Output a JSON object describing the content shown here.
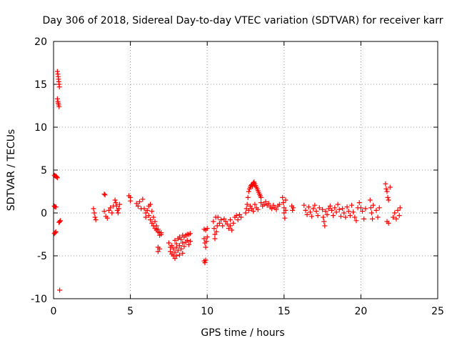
{
  "chart_data": {
    "type": "scatter",
    "title": "Day 306 of 2018, Sidereal Day-to-day VTEC variation (SDTVAR) for receiver karr",
    "xlabel": "GPS time / hours",
    "ylabel": "SDTVAR / TECUs",
    "xlim": [
      0,
      25
    ],
    "ylim": [
      -10,
      20
    ],
    "xticks": [
      0,
      5,
      10,
      15,
      20,
      25
    ],
    "yticks": [
      -10,
      -5,
      0,
      5,
      10,
      15,
      20
    ],
    "xtick_labels": [
      "0",
      "5",
      "10",
      "15",
      "20",
      "25"
    ],
    "ytick_labels": [
      "-10",
      "-5",
      "0",
      "5",
      "10",
      "15",
      "20"
    ],
    "grid": true,
    "marker": "+",
    "color": "#ff0000",
    "series": [
      {
        "name": "SDTVAR",
        "points": [
          [
            0.25,
            16.5
          ],
          [
            0.28,
            16.2
          ],
          [
            0.3,
            15.9
          ],
          [
            0.32,
            15.6
          ],
          [
            0.34,
            15.3
          ],
          [
            0.36,
            15.0
          ],
          [
            0.38,
            14.7
          ],
          [
            0.25,
            13.3
          ],
          [
            0.28,
            13.0
          ],
          [
            0.3,
            12.8
          ],
          [
            0.33,
            12.6
          ],
          [
            0.36,
            12.4
          ],
          [
            0.05,
            4.4
          ],
          [
            0.1,
            4.3
          ],
          [
            0.15,
            4.3
          ],
          [
            0.2,
            4.2
          ],
          [
            0.25,
            4.1
          ],
          [
            0.05,
            0.8
          ],
          [
            0.1,
            0.7
          ],
          [
            0.15,
            0.7
          ],
          [
            0.05,
            -2.4
          ],
          [
            0.1,
            -2.3
          ],
          [
            0.15,
            -2.2
          ],
          [
            0.35,
            -1.1
          ],
          [
            0.4,
            -1.0
          ],
          [
            0.45,
            -0.9
          ],
          [
            0.4,
            -9.0
          ],
          [
            2.6,
            0.5
          ],
          [
            2.65,
            0.0
          ],
          [
            2.7,
            -0.5
          ],
          [
            2.75,
            -0.8
          ],
          [
            3.3,
            2.2
          ],
          [
            3.35,
            2.1
          ],
          [
            3.3,
            0.2
          ],
          [
            3.4,
            -0.4
          ],
          [
            3.5,
            -0.6
          ],
          [
            3.6,
            0.3
          ],
          [
            3.7,
            0.6
          ],
          [
            3.8,
            0.0
          ],
          [
            3.9,
            0.8
          ],
          [
            4.0,
            1.5
          ],
          [
            4.05,
            1.2
          ],
          [
            4.1,
            0.8
          ],
          [
            4.15,
            0.3
          ],
          [
            4.2,
            0.0
          ],
          [
            4.25,
            0.5
          ],
          [
            4.3,
            1.0
          ],
          [
            4.9,
            2.0
          ],
          [
            5.0,
            1.8
          ],
          [
            5.0,
            1.4
          ],
          [
            5.4,
            1.1
          ],
          [
            5.5,
            0.8
          ],
          [
            5.6,
            1.3
          ],
          [
            5.7,
            0.5
          ],
          [
            5.8,
            1.6
          ],
          [
            5.9,
            0.5
          ],
          [
            6.0,
            0.0
          ],
          [
            6.0,
            -0.5
          ],
          [
            6.1,
            0.3
          ],
          [
            6.2,
            -0.3
          ],
          [
            6.2,
            0.8
          ],
          [
            6.3,
            -0.8
          ],
          [
            6.3,
            1.0
          ],
          [
            6.4,
            -1.2
          ],
          [
            6.4,
            0.2
          ],
          [
            6.5,
            -1.5
          ],
          [
            6.5,
            -0.5
          ],
          [
            6.6,
            -1.8
          ],
          [
            6.6,
            -1.0
          ],
          [
            6.7,
            -2.0
          ],
          [
            6.7,
            -1.5
          ],
          [
            6.8,
            -2.2
          ],
          [
            6.8,
            -1.9
          ],
          [
            6.9,
            -2.3
          ],
          [
            6.9,
            -2.6
          ],
          [
            7.0,
            -2.3
          ],
          [
            7.0,
            -2.5
          ],
          [
            6.8,
            -4.0
          ],
          [
            6.8,
            -4.5
          ],
          [
            6.9,
            -4.2
          ],
          [
            7.5,
            -3.5
          ],
          [
            7.6,
            -4.0
          ],
          [
            7.6,
            -4.5
          ],
          [
            7.7,
            -3.8
          ],
          [
            7.7,
            -4.8
          ],
          [
            7.8,
            -4.2
          ],
          [
            7.8,
            -5.0
          ],
          [
            7.9,
            -3.2
          ],
          [
            7.9,
            -4.6
          ],
          [
            7.9,
            -5.3
          ],
          [
            8.0,
            -3.6
          ],
          [
            8.0,
            -4.0
          ],
          [
            8.0,
            -5.0
          ],
          [
            8.1,
            -3.0
          ],
          [
            8.1,
            -4.4
          ],
          [
            8.2,
            -3.8
          ],
          [
            8.2,
            -4.9
          ],
          [
            8.3,
            -3.1
          ],
          [
            8.3,
            -4.2
          ],
          [
            8.4,
            -3.5
          ],
          [
            8.4,
            -4.7
          ],
          [
            8.5,
            -2.8
          ],
          [
            8.5,
            -3.9
          ],
          [
            8.6,
            -2.6
          ],
          [
            8.6,
            -3.4
          ],
          [
            8.7,
            -2.5
          ],
          [
            8.7,
            -3.2
          ],
          [
            8.8,
            -2.5
          ],
          [
            8.8,
            -3.7
          ],
          [
            8.9,
            -2.4
          ],
          [
            8.9,
            -3.3
          ],
          [
            8.2,
            -2.8
          ],
          [
            8.4,
            -2.6
          ],
          [
            9.8,
            -1.9
          ],
          [
            9.9,
            -2.0
          ],
          [
            10.0,
            -1.8
          ],
          [
            9.8,
            -3.0
          ],
          [
            9.85,
            -3.5
          ],
          [
            9.9,
            -4.0
          ],
          [
            9.95,
            -3.3
          ],
          [
            10.0,
            -2.8
          ],
          [
            9.8,
            -5.6
          ],
          [
            9.85,
            -5.8
          ],
          [
            9.9,
            -5.5
          ],
          [
            10.4,
            -1.0
          ],
          [
            10.45,
            -1.8
          ],
          [
            10.5,
            -2.5
          ],
          [
            10.5,
            -3.0
          ],
          [
            10.55,
            -0.5
          ],
          [
            10.6,
            -2.2
          ],
          [
            10.65,
            -1.5
          ],
          [
            10.7,
            -0.5
          ],
          [
            10.8,
            -1.2
          ],
          [
            10.9,
            -0.8
          ],
          [
            11.0,
            -1.5
          ],
          [
            11.1,
            -0.7
          ],
          [
            11.2,
            -1.0
          ],
          [
            11.3,
            -1.3
          ],
          [
            11.4,
            -1.8
          ],
          [
            11.5,
            -0.8
          ],
          [
            11.5,
            -1.5
          ],
          [
            11.6,
            -2.0
          ],
          [
            11.7,
            -1.2
          ],
          [
            11.8,
            -0.5
          ],
          [
            11.9,
            -0.3
          ],
          [
            12.0,
            -0.8
          ],
          [
            12.1,
            -0.2
          ],
          [
            12.2,
            -0.5
          ],
          [
            12.5,
            0.0
          ],
          [
            12.55,
            0.5
          ],
          [
            12.6,
            1.0
          ],
          [
            12.65,
            1.8
          ],
          [
            12.7,
            2.5
          ],
          [
            12.75,
            2.8
          ],
          [
            12.8,
            3.0
          ],
          [
            12.85,
            3.2
          ],
          [
            12.9,
            3.3
          ],
          [
            12.95,
            3.1
          ],
          [
            13.0,
            3.5
          ],
          [
            13.05,
            3.6
          ],
          [
            13.1,
            3.4
          ],
          [
            13.15,
            3.2
          ],
          [
            13.2,
            3.0
          ],
          [
            13.25,
            2.8
          ],
          [
            13.3,
            2.6
          ],
          [
            13.35,
            2.4
          ],
          [
            13.4,
            2.2
          ],
          [
            13.45,
            2.0
          ],
          [
            13.5,
            1.8
          ],
          [
            12.7,
            0.3
          ],
          [
            12.8,
            0.8
          ],
          [
            12.9,
            0.5
          ],
          [
            13.0,
            0.2
          ],
          [
            13.1,
            1.0
          ],
          [
            13.2,
            0.6
          ],
          [
            13.3,
            0.4
          ],
          [
            13.5,
            1.2
          ],
          [
            13.6,
            0.8
          ],
          [
            13.7,
            1.0
          ],
          [
            13.8,
            1.3
          ],
          [
            13.9,
            0.9
          ],
          [
            14.0,
            1.1
          ],
          [
            14.1,
            0.7
          ],
          [
            14.2,
            0.5
          ],
          [
            14.3,
            0.9
          ],
          [
            14.4,
            0.6
          ],
          [
            14.5,
            0.4
          ],
          [
            14.6,
            0.8
          ],
          [
            14.7,
            1.0
          ],
          [
            14.9,
            1.8
          ],
          [
            14.95,
            1.2
          ],
          [
            15.0,
            0.6
          ],
          [
            15.0,
            0.0
          ],
          [
            15.05,
            -0.6
          ],
          [
            15.1,
            1.5
          ],
          [
            15.1,
            0.3
          ],
          [
            15.5,
            0.8
          ],
          [
            15.55,
            0.3
          ],
          [
            15.6,
            0.6
          ],
          [
            16.3,
            0.9
          ],
          [
            16.4,
            0.3
          ],
          [
            16.5,
            -0.2
          ],
          [
            16.6,
            0.7
          ],
          [
            16.7,
            0.1
          ],
          [
            16.8,
            -0.4
          ],
          [
            16.9,
            0.5
          ],
          [
            17.0,
            0.9
          ],
          [
            17.1,
            0.2
          ],
          [
            17.2,
            -0.3
          ],
          [
            17.3,
            0.6
          ],
          [
            17.5,
            0.4
          ],
          [
            17.55,
            -0.5
          ],
          [
            17.6,
            -1.0
          ],
          [
            17.65,
            -1.5
          ],
          [
            17.7,
            0.2
          ],
          [
            17.8,
            -0.2
          ],
          [
            17.9,
            0.5
          ],
          [
            18.0,
            0.8
          ],
          [
            18.1,
            0.3
          ],
          [
            18.2,
            -0.3
          ],
          [
            18.3,
            0.6
          ],
          [
            18.4,
            0.1
          ],
          [
            18.5,
            1.0
          ],
          [
            18.6,
            0.4
          ],
          [
            18.7,
            -0.4
          ],
          [
            18.8,
            0.5
          ],
          [
            18.9,
            0.0
          ],
          [
            19.0,
            -0.5
          ],
          [
            19.1,
            0.7
          ],
          [
            19.2,
            0.2
          ],
          [
            19.3,
            -0.3
          ],
          [
            19.4,
            0.9
          ],
          [
            19.5,
            0.1
          ],
          [
            19.6,
            -0.5
          ],
          [
            19.7,
            -0.9
          ],
          [
            19.8,
            0.6
          ],
          [
            19.9,
            1.2
          ],
          [
            20.0,
            0.6
          ],
          [
            20.1,
            0.2
          ],
          [
            20.2,
            -0.7
          ],
          [
            20.3,
            0.5
          ],
          [
            20.6,
            1.5
          ],
          [
            20.65,
            0.6
          ],
          [
            20.7,
            0.0
          ],
          [
            20.75,
            -0.7
          ],
          [
            20.8,
            0.9
          ],
          [
            21.0,
            0.3
          ],
          [
            21.1,
            -0.5
          ],
          [
            21.2,
            0.6
          ],
          [
            21.6,
            3.4
          ],
          [
            21.65,
            2.8
          ],
          [
            21.7,
            2.5
          ],
          [
            21.75,
            1.8
          ],
          [
            21.8,
            1.5
          ],
          [
            21.9,
            3.0
          ],
          [
            21.7,
            -1.0
          ],
          [
            21.8,
            -1.2
          ],
          [
            22.1,
            -0.5
          ],
          [
            22.2,
            0.0
          ],
          [
            22.3,
            -0.7
          ],
          [
            22.4,
            0.3
          ],
          [
            22.5,
            -0.3
          ],
          [
            22.55,
            0.6
          ]
        ]
      }
    ]
  }
}
